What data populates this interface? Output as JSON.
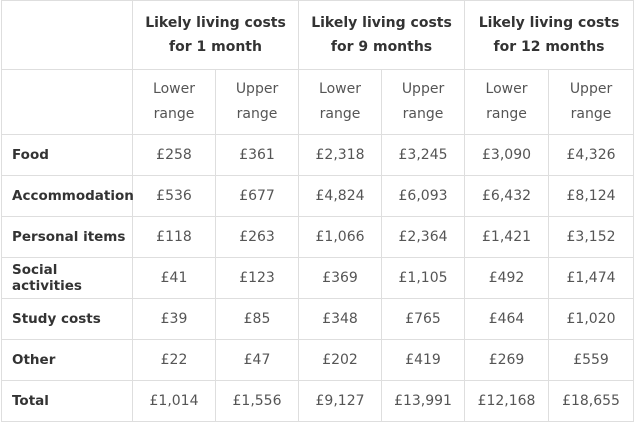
{
  "table": {
    "groups": [
      "Likely living costs for 1 month",
      "Likely living costs for 9 months",
      "Likely living costs for 12 months"
    ],
    "subheaders": [
      "Lower range",
      "Upper range",
      "Lower range",
      "Upper range",
      "Lower range",
      "Upper range"
    ],
    "rows": [
      [
        "Food",
        "£258",
        "£361",
        "£2,318",
        "£3,245",
        "£3,090",
        "£4,326"
      ],
      [
        "Accommodation",
        "£536",
        "£677",
        "£4,824",
        "£6,093",
        "£6,432",
        "£8,124"
      ],
      [
        "Personal items",
        "£118",
        "£263",
        "£1,066",
        "£2,364",
        "£1,421",
        "£3,152"
      ],
      [
        "Social activities",
        "£41",
        "£123",
        "£369",
        "£1,105",
        "£492",
        "£1,474"
      ],
      [
        "Study costs",
        "£39",
        "£85",
        "£348",
        "£765",
        "£464",
        "£1,020"
      ],
      [
        "Other",
        "£22",
        "£47",
        "£202",
        "£419",
        "£269",
        "£559"
      ],
      [
        "Total",
        "£1,014",
        "£1,556",
        "£9,127",
        "£13,991",
        "£12,168",
        "£18,655"
      ]
    ]
  }
}
